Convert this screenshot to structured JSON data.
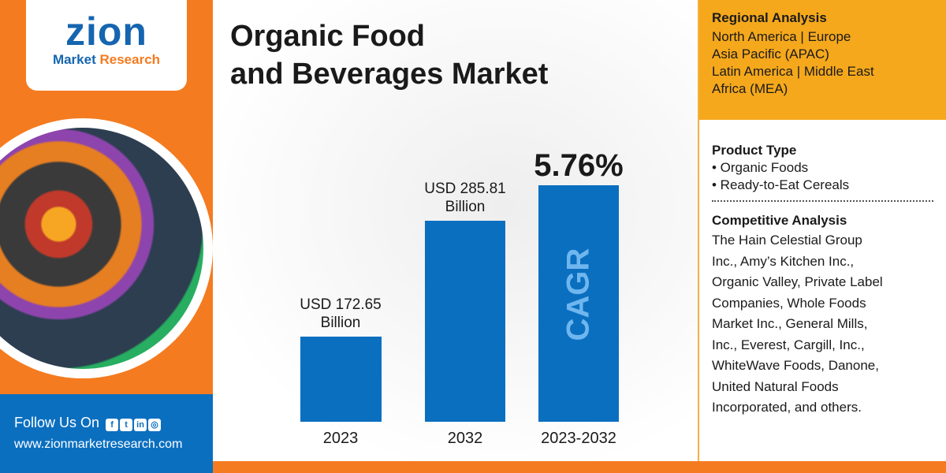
{
  "logo": {
    "brand": "zion",
    "sub1": "Market",
    "sub2": "Research"
  },
  "title": {
    "line1": "Organic Food",
    "line2": "and Beverages Market"
  },
  "footer": {
    "follow": "Follow Us On",
    "url": "www.zionmarketresearch.com",
    "icons": [
      "facebook-icon",
      "twitter-icon",
      "linkedin-icon",
      "instagram-icon"
    ]
  },
  "regional": {
    "heading": "Regional Analysis",
    "lines": [
      "North America | Europe",
      "Asia Pacific (APAC)",
      "Latin America | Middle East",
      "Africa (MEA)"
    ]
  },
  "product": {
    "heading": "Product Type",
    "items": [
      "• Organic Foods",
      "• Ready-to-Eat Cereals"
    ]
  },
  "competitive": {
    "heading": "Competitive Analysis",
    "lines": [
      "The Hain Celestial Group",
      "Inc., Amy’s Kitchen Inc.,",
      "Organic Valley, Private Label",
      "Companies, Whole Foods",
      "Market Inc., General Mills,",
      "Inc., Everest, Cargill, Inc.,",
      "WhiteWave Foods, Danone,",
      "United Natural Foods",
      "Incorporated, and others."
    ]
  },
  "chart_data": {
    "type": "bar",
    "title": "Organic Food and Beverages Market",
    "categories": [
      "2023",
      "2032"
    ],
    "values": [
      172.65,
      285.81
    ],
    "data_labels": [
      [
        "USD 172.65",
        "Billion"
      ],
      [
        "USD 285.81",
        "Billion"
      ]
    ],
    "unit": "USD Billion",
    "cagr": {
      "label": "CAGR",
      "value": "5.76%",
      "period": "2023-2032"
    },
    "ylim": [
      90,
      300
    ]
  },
  "colors": {
    "orange": "#f47b20",
    "blue": "#0b6fc0",
    "gold": "#f5a81c"
  }
}
